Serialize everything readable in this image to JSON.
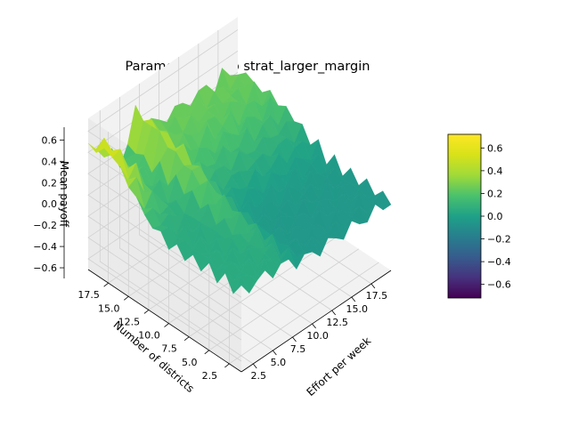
{
  "chart_data": {
    "type": "surface",
    "title": "Parameter Sweep strat_larger_margin",
    "xlabel": "Effort per week",
    "ylabel": "Number of districts",
    "zlabel": "Mean payoff",
    "x_ticks": [
      "2.5",
      "5.0",
      "7.5",
      "10.0",
      "12.5",
      "15.0",
      "17.5"
    ],
    "y_ticks": [
      "2.5",
      "5.0",
      "7.5",
      "10.0",
      "12.5",
      "15.0",
      "17.5"
    ],
    "z_ticks": [
      "−0.6",
      "−0.4",
      "−0.2",
      "0.0",
      "0.2",
      "0.4",
      "0.6"
    ],
    "colorbar_ticks": [
      "−0.6",
      "−0.4",
      "−0.2",
      "0.0",
      "0.2",
      "0.4",
      "0.6"
    ],
    "xlim": [
      1,
      20
    ],
    "ylim": [
      1,
      20
    ],
    "zlim": [
      -0.7,
      0.72
    ],
    "colormap": "viridis",
    "clim": [
      -0.72,
      0.72
    ],
    "grid": true,
    "colorbar": "right",
    "surface_summary": {
      "low_effort_region_z": 0.05,
      "high_effort_low_district_z": -0.05,
      "high_effort_high_district_z": 0.25,
      "peak_z": 0.7,
      "peak_location": {
        "effort": 1,
        "districts": 18
      }
    }
  }
}
